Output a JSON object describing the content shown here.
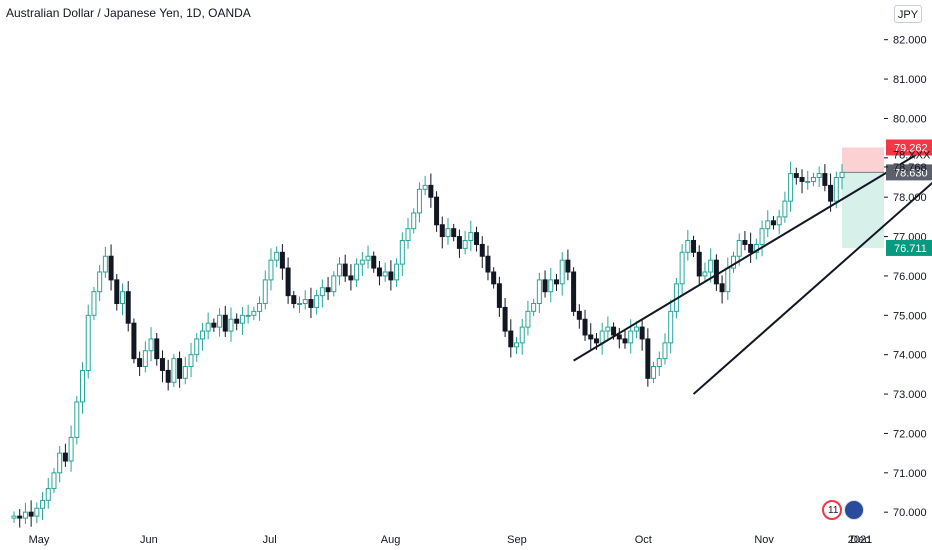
{
  "header": {
    "title": "Australian Dollar / Japanese Yen, 1D, OANDA",
    "currency_button": "JPY"
  },
  "events": {
    "count": "11"
  },
  "colors": {
    "up": "#26a69a",
    "down": "#131722",
    "stop_zone": "#fbd1d1",
    "target_zone": "#d7f0ea",
    "stop_tag": "#f23645",
    "target_tag": "#089981",
    "entry_tag": "#5d606b"
  },
  "chart_data": {
    "type": "candlestick",
    "title": "Australian Dollar / Japanese Yen, 1D, OANDA",
    "ylim": [
      69.7,
      82.5
    ],
    "y_ticks": [
      70.0,
      71.0,
      72.0,
      73.0,
      74.0,
      75.0,
      76.0,
      77.0,
      78.0,
      79.0,
      80.0,
      81.0,
      82.0
    ],
    "y_tick_labels": [
      "70.000",
      "71.000",
      "72.000",
      "73.000",
      "74.000",
      "75.000",
      "76.000",
      "77.000",
      "78.000",
      "",
      "80.000",
      "81.000",
      "82.000"
    ],
    "x_ticks": [
      "May",
      "Jun",
      "Jul",
      "Aug",
      "Sep",
      "Oct",
      "Nov",
      "Dec",
      "2021"
    ],
    "close_series": [
      69.9,
      69.85,
      70.0,
      69.9,
      70.1,
      70.3,
      70.6,
      71.0,
      71.5,
      71.3,
      71.9,
      72.8,
      73.6,
      75.0,
      75.6,
      76.1,
      76.5,
      75.9,
      75.3,
      75.6,
      74.8,
      73.9,
      73.7,
      74.1,
      74.4,
      73.9,
      73.6,
      73.3,
      73.9,
      73.4,
      73.7,
      74.0,
      74.4,
      74.6,
      74.8,
      74.7,
      75.0,
      74.6,
      74.9,
      74.8,
      75.0,
      75.0,
      75.1,
      75.3,
      75.9,
      76.4,
      76.6,
      76.2,
      75.5,
      75.3,
      75.3,
      75.4,
      75.2,
      75.5,
      75.7,
      75.6,
      76.0,
      76.3,
      76.0,
      75.9,
      76.3,
      76.4,
      76.5,
      76.2,
      76.0,
      76.1,
      75.9,
      76.3,
      76.9,
      77.2,
      77.6,
      78.2,
      78.3,
      78.0,
      77.3,
      77.0,
      77.2,
      77.0,
      76.7,
      76.9,
      77.1,
      76.8,
      76.5,
      76.1,
      75.8,
      75.2,
      74.6,
      74.2,
      74.3,
      74.7,
      75.1,
      75.3,
      75.9,
      75.6,
      75.9,
      75.8,
      76.4,
      76.1,
      75.1,
      74.9,
      74.5,
      74.4,
      74.3,
      74.6,
      74.7,
      74.5,
      74.4,
      74.3,
      74.6,
      74.7,
      74.4,
      73.4,
      73.7,
      73.9,
      74.3,
      75.1,
      75.8,
      76.6,
      76.9,
      76.6,
      76.0,
      76.1,
      76.4,
      75.8,
      75.6,
      76.2,
      76.5,
      76.9,
      76.8,
      76.6,
      76.8,
      77.2,
      77.4,
      77.3,
      77.5,
      77.9,
      78.6,
      78.5,
      78.4,
      78.4,
      78.5,
      78.6,
      78.3,
      77.9,
      78.5,
      78.63
    ],
    "trendlines": [
      {
        "name": "upper-wedge-line",
        "from": {
          "index": 98,
          "value": 73.85
        },
        "to": {
          "index": 164,
          "value": 79.6
        }
      },
      {
        "name": "lower-wedge-line",
        "from": {
          "index": 119,
          "value": 73.0
        },
        "to": {
          "index": 165,
          "value": 78.9
        }
      }
    ],
    "position": {
      "stop": 79.262,
      "target": 76.711,
      "entry": 78.63,
      "last": 78.768
    },
    "price_tags": {
      "stop": "79.262",
      "last": "78.768",
      "entry": "78.630",
      "target": "76.711",
      "partial": "78.XXX"
    }
  }
}
